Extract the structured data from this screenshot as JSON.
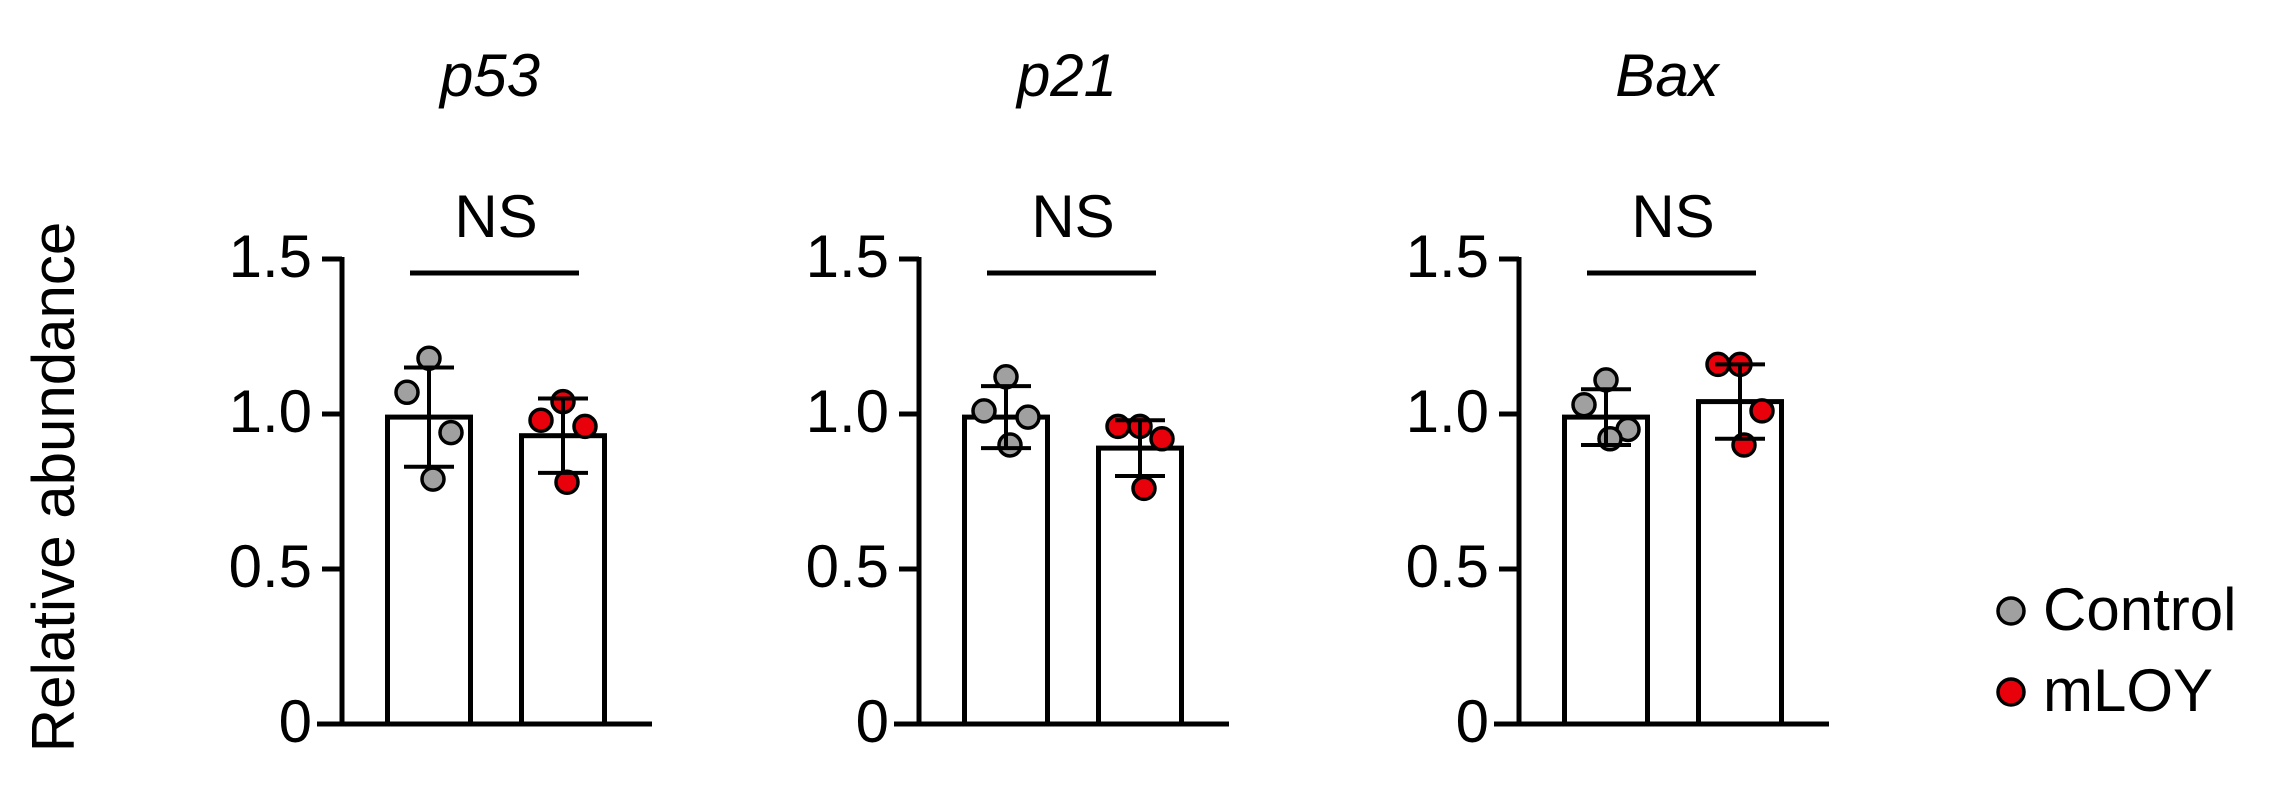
{
  "y_label": "Relative abundance",
  "legend": [
    {
      "name": "Control",
      "color": "#a0a0a0"
    },
    {
      "name": "mLOY",
      "color": "#e8000b"
    }
  ],
  "chart_data": [
    {
      "type": "bar",
      "title": "p53",
      "annotation": "NS",
      "ylim": [
        0,
        1.5
      ],
      "yticks": [
        0,
        0.5,
        {
          "value": 1,
          "label": "1.0"
        },
        1.5
      ],
      "series": [
        {
          "values": [
            0.99
          ],
          "errors": [
            0.16
          ],
          "points": [
            1.18,
            1.07,
            0.94,
            0.79
          ]
        },
        {
          "values": [
            0.93
          ],
          "errors": [
            0.12
          ],
          "points": [
            1.04,
            0.98,
            0.96,
            0.78
          ]
        }
      ]
    },
    {
      "type": "bar",
      "title": "p21",
      "annotation": "NS",
      "ylim": [
        0,
        1.5
      ],
      "yticks": [
        0,
        0.5,
        {
          "value": 1,
          "label": "1.0"
        },
        1.5
      ],
      "series": [
        {
          "values": [
            0.99
          ],
          "errors": [
            0.1
          ],
          "points": [
            1.12,
            1.01,
            0.99,
            0.9
          ]
        },
        {
          "values": [
            0.89
          ],
          "errors": [
            0.09
          ],
          "points": [
            0.96,
            0.96,
            0.92,
            0.76
          ]
        }
      ]
    },
    {
      "type": "bar",
      "title": "Bax",
      "annotation": "NS",
      "ylim": [
        0,
        1.5
      ],
      "yticks": [
        0,
        0.5,
        {
          "value": 1,
          "label": "1.0"
        },
        1.5
      ],
      "series": [
        {
          "values": [
            0.99
          ],
          "errors": [
            0.09
          ],
          "points": [
            1.11,
            1.03,
            0.95,
            0.92
          ]
        },
        {
          "values": [
            1.04
          ],
          "errors": [
            0.12
          ],
          "points": [
            1.16,
            1.16,
            1.01,
            0.9
          ]
        }
      ]
    }
  ]
}
